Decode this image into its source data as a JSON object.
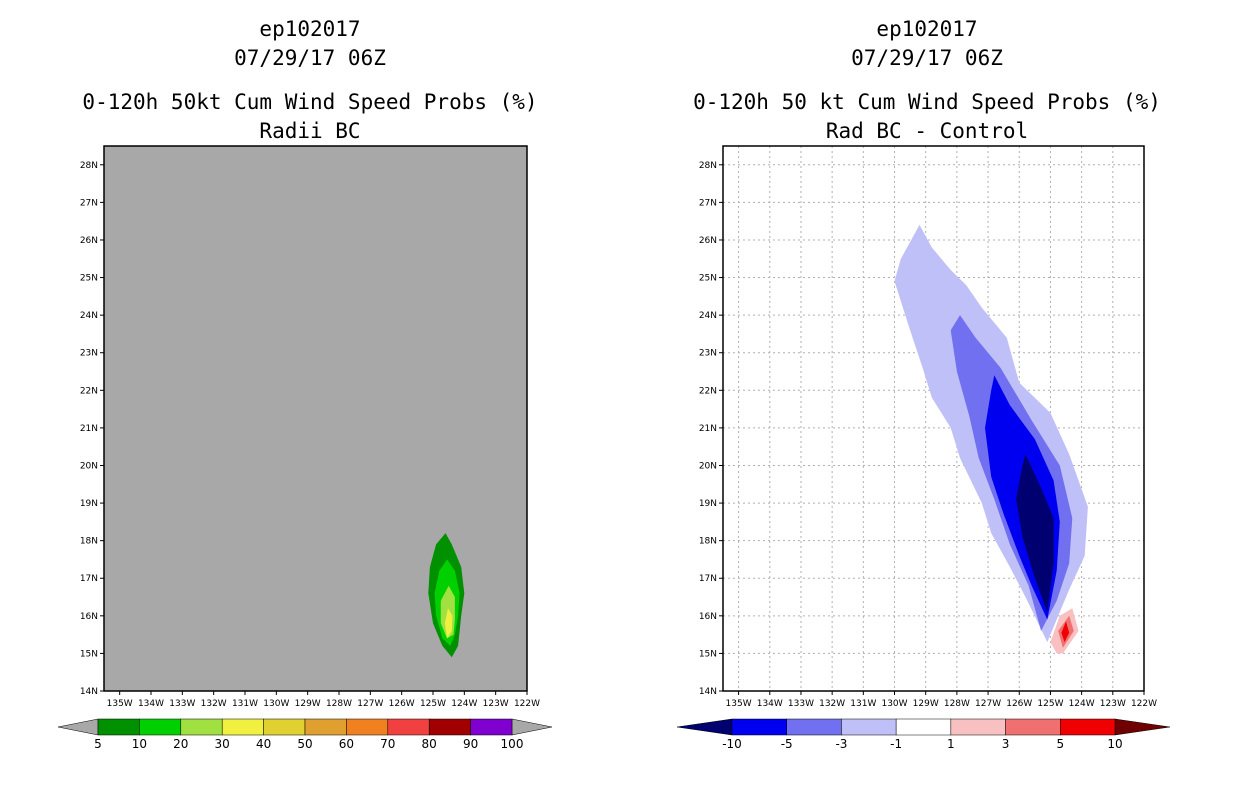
{
  "chart_data": [
    {
      "type": "contour",
      "storm_id": "ep102017",
      "datetime": "07/29/17 06Z",
      "title": "0-120h 50kt Cum Wind Speed Probs (%)",
      "subtitle": "Radii BC",
      "x_ticks": [
        "135W",
        "134W",
        "133W",
        "132W",
        "131W",
        "130W",
        "129W",
        "128W",
        "127W",
        "126W",
        "125W",
        "124W",
        "123W",
        "122W"
      ],
      "y_ticks": [
        "14N",
        "15N",
        "16N",
        "17N",
        "18N",
        "19N",
        "20N",
        "21N",
        "22N",
        "23N",
        "24N",
        "25N",
        "26N",
        "27N",
        "28N"
      ],
      "xlim": [
        -135.5,
        -122
      ],
      "ylim": [
        14,
        28.5
      ],
      "grid": false,
      "background": "#a8a8a8",
      "colorbar": {
        "levels": [
          "5",
          "10",
          "20",
          "30",
          "40",
          "50",
          "60",
          "70",
          "80",
          "90",
          "100"
        ],
        "colors": [
          "#009000",
          "#00d000",
          "#a0e040",
          "#f0f040",
          "#e0d030",
          "#e0a030",
          "#f08020",
          "#f04040",
          "#a00000",
          "#8000d0"
        ],
        "under_color": "#a8a8a8",
        "over_color": "#a8a8a8"
      },
      "contours": [
        {
          "level": "5-10",
          "color": "#009000",
          "center": [
            -124.6,
            16.5
          ],
          "polygon": [
            [
              -124.1,
              16.0
            ],
            [
              -124.0,
              16.6
            ],
            [
              -124.1,
              17.3
            ],
            [
              -124.4,
              17.9
            ],
            [
              -124.6,
              18.2
            ],
            [
              -124.9,
              17.9
            ],
            [
              -125.1,
              17.3
            ],
            [
              -125.15,
              16.6
            ],
            [
              -125.0,
              15.8
            ],
            [
              -124.7,
              15.2
            ],
            [
              -124.4,
              14.9
            ],
            [
              -124.2,
              15.2
            ]
          ]
        },
        {
          "level": "10-20",
          "color": "#00d000",
          "polygon": [
            [
              -124.2,
              16.0
            ],
            [
              -124.15,
              16.6
            ],
            [
              -124.3,
              17.2
            ],
            [
              -124.55,
              17.5
            ],
            [
              -124.8,
              17.2
            ],
            [
              -124.95,
              16.6
            ],
            [
              -124.9,
              16.0
            ],
            [
              -124.7,
              15.4
            ],
            [
              -124.45,
              15.2
            ],
            [
              -124.3,
              15.5
            ]
          ]
        },
        {
          "level": "20-30",
          "color": "#a0e040",
          "polygon": [
            [
              -124.3,
              15.9
            ],
            [
              -124.3,
              16.5
            ],
            [
              -124.5,
              16.8
            ],
            [
              -124.75,
              16.4
            ],
            [
              -124.75,
              15.8
            ],
            [
              -124.55,
              15.4
            ],
            [
              -124.35,
              15.5
            ]
          ]
        },
        {
          "level": "30-40",
          "color": "#f0f040",
          "polygon": [
            [
              -124.4,
              15.6
            ],
            [
              -124.38,
              16.0
            ],
            [
              -124.52,
              16.2
            ],
            [
              -124.62,
              15.8
            ],
            [
              -124.55,
              15.4
            ]
          ]
        }
      ]
    },
    {
      "type": "contour",
      "storm_id": "ep102017",
      "datetime": "07/29/17 06Z",
      "title": "0-120h 50 kt Cum Wind Speed Probs (%)",
      "subtitle": "Rad BC - Control",
      "x_ticks": [
        "135W",
        "134W",
        "133W",
        "132W",
        "131W",
        "130W",
        "129W",
        "128W",
        "127W",
        "126W",
        "125W",
        "124W",
        "123W",
        "122W"
      ],
      "y_ticks": [
        "14N",
        "15N",
        "16N",
        "17N",
        "18N",
        "19N",
        "20N",
        "21N",
        "22N",
        "23N",
        "24N",
        "25N",
        "26N",
        "27N",
        "28N"
      ],
      "xlim": [
        -135.5,
        -122
      ],
      "ylim": [
        14,
        28.5
      ],
      "grid": true,
      "background": "#ffffff",
      "colorbar": {
        "levels": [
          "-10",
          "-5",
          "-3",
          "-1",
          "1",
          "3",
          "5",
          "10"
        ],
        "colors": [
          "#0000f0",
          "#7070f0",
          "#c0c0f8",
          "#ffffff",
          "#f8c0c0",
          "#f07070",
          "#f00000"
        ],
        "under_color": "#000070",
        "over_color": "#700000"
      },
      "contours": [
        {
          "level": "-3 to -1",
          "color": "#c0c0f8",
          "polygon": [
            [
              -129.8,
              25.5
            ],
            [
              -129.2,
              26.4
            ],
            [
              -128.8,
              25.8
            ],
            [
              -128.2,
              25.2
            ],
            [
              -127.7,
              24.8
            ],
            [
              -127.2,
              24.2
            ],
            [
              -126.4,
              23.4
            ],
            [
              -126.0,
              22.2
            ],
            [
              -125.0,
              21.4
            ],
            [
              -124.4,
              20.3
            ],
            [
              -123.8,
              18.9
            ],
            [
              -123.9,
              17.6
            ],
            [
              -124.4,
              16.7
            ],
            [
              -125.1,
              15.3
            ],
            [
              -125.8,
              16.5
            ],
            [
              -126.3,
              17.3
            ],
            [
              -126.9,
              18.2
            ],
            [
              -127.2,
              19.0
            ],
            [
              -127.9,
              20.2
            ],
            [
              -128.2,
              21.0
            ],
            [
              -128.8,
              21.8
            ],
            [
              -129.1,
              22.6
            ],
            [
              -129.5,
              23.6
            ],
            [
              -130.0,
              24.9
            ]
          ]
        },
        {
          "level": "-5 to -3",
          "color": "#7070f0",
          "polygon": [
            [
              -128.2,
              23.6
            ],
            [
              -127.9,
              24.0
            ],
            [
              -127.4,
              23.4
            ],
            [
              -126.6,
              22.6
            ],
            [
              -125.6,
              21.2
            ],
            [
              -124.7,
              20.0
            ],
            [
              -124.3,
              18.6
            ],
            [
              -124.4,
              17.4
            ],
            [
              -124.8,
              16.4
            ],
            [
              -125.3,
              15.6
            ],
            [
              -125.7,
              16.8
            ],
            [
              -126.3,
              17.9
            ],
            [
              -126.8,
              19.1
            ],
            [
              -127.3,
              20.2
            ],
            [
              -127.6,
              21.3
            ],
            [
              -128.0,
              22.5
            ]
          ]
        },
        {
          "level": "-10 to -5",
          "color": "#0000f0",
          "polygon": [
            [
              -126.9,
              22.0
            ],
            [
              -126.8,
              22.4
            ],
            [
              -126.3,
              21.6
            ],
            [
              -125.5,
              20.7
            ],
            [
              -124.9,
              19.6
            ],
            [
              -124.7,
              18.5
            ],
            [
              -124.8,
              17.2
            ],
            [
              -125.1,
              15.9
            ],
            [
              -125.6,
              16.8
            ],
            [
              -126.0,
              17.6
            ],
            [
              -126.5,
              18.7
            ],
            [
              -126.9,
              19.7
            ],
            [
              -127.1,
              21.0
            ]
          ]
        },
        {
          "level": "< -10",
          "color": "#000070",
          "polygon": [
            [
              -125.9,
              20.0
            ],
            [
              -125.8,
              20.3
            ],
            [
              -125.3,
              19.4
            ],
            [
              -124.9,
              18.6
            ],
            [
              -124.9,
              17.4
            ],
            [
              -125.1,
              16.1
            ],
            [
              -125.5,
              17.0
            ],
            [
              -125.9,
              18.1
            ],
            [
              -126.1,
              19.1
            ]
          ]
        },
        {
          "level": "1 to 3",
          "color": "#f8c0c0",
          "polygon": [
            [
              -124.6,
              15.0
            ],
            [
              -124.1,
              15.6
            ],
            [
              -124.3,
              16.2
            ],
            [
              -124.7,
              16.0
            ],
            [
              -125.0,
              15.3
            ],
            [
              -124.8,
              15.0
            ]
          ]
        },
        {
          "level": "3 to 5",
          "color": "#f07070",
          "polygon": [
            [
              -124.6,
              15.15
            ],
            [
              -124.25,
              15.6
            ],
            [
              -124.4,
              16.0
            ],
            [
              -124.75,
              15.6
            ]
          ]
        },
        {
          "level": "5 to 10",
          "color": "#f00000",
          "polygon": [
            [
              -124.55,
              15.3
            ],
            [
              -124.4,
              15.55
            ],
            [
              -124.5,
              15.85
            ],
            [
              -124.65,
              15.55
            ]
          ]
        }
      ]
    }
  ]
}
